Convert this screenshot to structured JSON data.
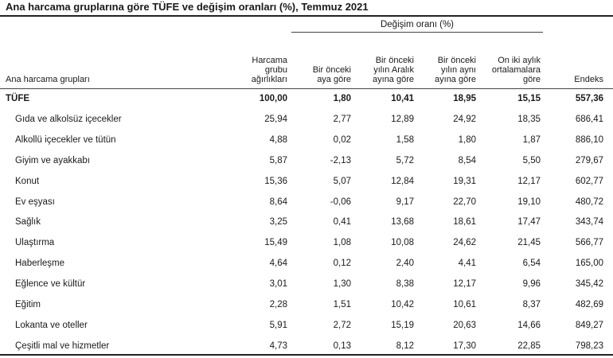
{
  "title": "Ana harcama gruplarına göre TÜFE ve değişim oranları (%), Temmuz 2021",
  "group_header": "Değişim oranı (%)",
  "columns": {
    "category": "Ana harcama grupları",
    "weight": [
      "Harcama",
      "grubu",
      "ağırlıkları"
    ],
    "monthly": [
      "Bir önceki",
      "aya göre"
    ],
    "vs_december": [
      "Bir önceki",
      "yılın Aralık",
      "ayına göre"
    ],
    "yoy": [
      "Bir önceki",
      "yılın aynı",
      "ayına göre"
    ],
    "twelve_month_avg": [
      "On iki aylık",
      "ortalamalara",
      "göre"
    ],
    "index": "Endeks"
  },
  "rows": [
    {
      "name": "TÜFE",
      "weight": "100,00",
      "monthly": "1,80",
      "vs_december": "10,41",
      "yoy": "18,95",
      "avg12": "15,15",
      "index": "557,36"
    },
    {
      "name": "Gıda ve alkolsüz içecekler",
      "weight": "25,94",
      "monthly": "2,77",
      "vs_december": "12,89",
      "yoy": "24,92",
      "avg12": "18,35",
      "index": "686,41"
    },
    {
      "name": "Alkollü içecekler ve tütün",
      "weight": "4,88",
      "monthly": "0,02",
      "vs_december": "1,58",
      "yoy": "1,80",
      "avg12": "1,87",
      "index": "886,10"
    },
    {
      "name": "Giyim ve ayakkabı",
      "weight": "5,87",
      "monthly": "-2,13",
      "vs_december": "5,72",
      "yoy": "8,54",
      "avg12": "5,50",
      "index": "279,67"
    },
    {
      "name": "Konut",
      "weight": "15,36",
      "monthly": "5,07",
      "vs_december": "12,84",
      "yoy": "19,31",
      "avg12": "12,17",
      "index": "602,77"
    },
    {
      "name": "Ev eşyası",
      "weight": "8,64",
      "monthly": "-0,06",
      "vs_december": "9,17",
      "yoy": "22,70",
      "avg12": "19,10",
      "index": "480,72"
    },
    {
      "name": "Sağlık",
      "weight": "3,25",
      "monthly": "0,41",
      "vs_december": "13,68",
      "yoy": "18,61",
      "avg12": "17,47",
      "index": "343,74"
    },
    {
      "name": "Ulaştırma",
      "weight": "15,49",
      "monthly": "1,08",
      "vs_december": "10,08",
      "yoy": "24,62",
      "avg12": "21,45",
      "index": "566,77"
    },
    {
      "name": "Haberleşme",
      "weight": "4,64",
      "monthly": "0,12",
      "vs_december": "2,40",
      "yoy": "4,41",
      "avg12": "6,54",
      "index": "165,00"
    },
    {
      "name": "Eğlence ve kültür",
      "weight": "3,01",
      "monthly": "1,30",
      "vs_december": "8,38",
      "yoy": "12,17",
      "avg12": "9,96",
      "index": "345,42"
    },
    {
      "name": "Eğitim",
      "weight": "2,28",
      "monthly": "1,51",
      "vs_december": "10,42",
      "yoy": "10,61",
      "avg12": "8,37",
      "index": "482,69"
    },
    {
      "name": "Lokanta ve oteller",
      "weight": "5,91",
      "monthly": "2,72",
      "vs_december": "15,19",
      "yoy": "20,63",
      "avg12": "14,66",
      "index": "849,27"
    },
    {
      "name": "Çeşitli mal ve hizmetler",
      "weight": "4,73",
      "monthly": "0,13",
      "vs_december": "8,12",
      "yoy": "17,30",
      "avg12": "22,85",
      "index": "798,23"
    }
  ]
}
